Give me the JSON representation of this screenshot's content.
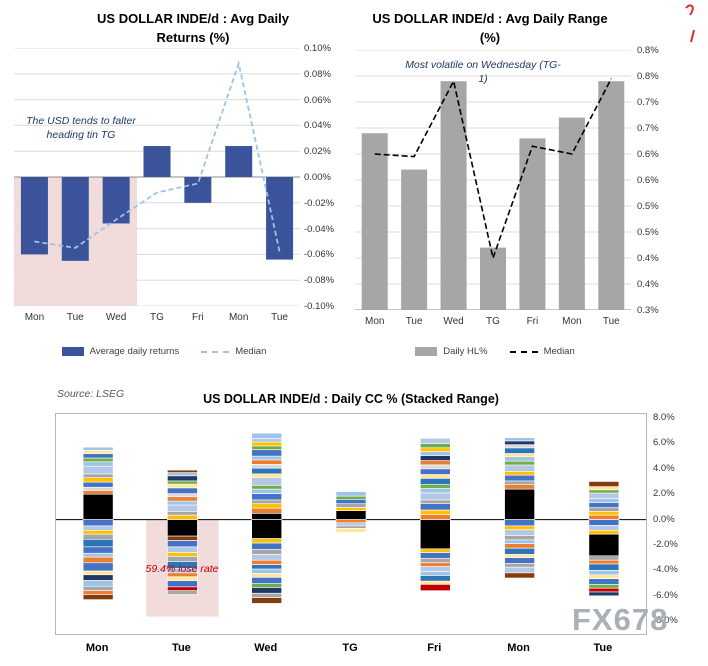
{
  "source": "Source: LSEG",
  "watermark": "FX678",
  "colors": {
    "bar_blue": "#3a539b",
    "median_light_blue": "#9dc3e6",
    "bar_gray": "#a6a6a6",
    "median_black": "#000000",
    "highlight_pink": "#f2dcdb",
    "annotation_blue": "#1f3864",
    "annotation_red": "#c00000"
  },
  "chart_data": [
    {
      "type": "bar",
      "title": "US DOLLAR INDE/d : Avg Daily Returns (%)",
      "categories": [
        "Mon",
        "Tue",
        "Wed",
        "TG",
        "Fri",
        "Mon",
        "Tue"
      ],
      "series": [
        {
          "name": "Average daily returns",
          "type": "bar",
          "color": "#3a539b",
          "values": [
            -0.06,
            -0.065,
            -0.036,
            0.024,
            -0.02,
            0.024,
            -0.064
          ]
        },
        {
          "name": "Median",
          "type": "line",
          "style": "dashed",
          "color": "#9dc3e6",
          "values": [
            -0.05,
            -0.055,
            -0.033,
            -0.012,
            -0.005,
            0.088,
            -0.058
          ]
        }
      ],
      "ylim": [
        -0.1,
        0.1
      ],
      "yticks": [
        "0.10%",
        "0.08%",
        "0.06%",
        "0.04%",
        "0.02%",
        "0.00%",
        "-0.02%",
        "-0.04%",
        "-0.06%",
        "-0.08%",
        "-0.10%"
      ],
      "annotation": "The USD tends to falter heading tin TG",
      "highlight_region": "Mon-Wed below zero",
      "legend_position": "bottom",
      "grid": true
    },
    {
      "type": "bar",
      "title": "US DOLLAR INDE/d : Avg Daily Range (%)",
      "categories": [
        "Mon",
        "Tue",
        "Wed",
        "TG",
        "Fri",
        "Mon",
        "Tue"
      ],
      "series": [
        {
          "name": "Daily HL%",
          "type": "bar",
          "color": "#a6a6a6",
          "values": [
            0.64,
            0.57,
            0.74,
            0.42,
            0.63,
            0.67,
            0.74
          ]
        },
        {
          "name": "Median",
          "type": "line",
          "style": "dashed",
          "color": "#000000",
          "values": [
            0.6,
            0.595,
            0.74,
            0.4,
            0.615,
            0.6,
            0.745
          ]
        }
      ],
      "ylim": [
        0.3,
        0.8
      ],
      "yticks": [
        "0.8%",
        "0.8%",
        "0.7%",
        "0.7%",
        "0.6%",
        "0.6%",
        "0.5%",
        "0.5%",
        "0.4%",
        "0.4%",
        "0.3%"
      ],
      "annotation": "Most volatile on Wednesday (TG-1)",
      "legend_position": "bottom",
      "grid": true
    },
    {
      "type": "stacked-bar",
      "title": "US DOLLAR INDE/d : Daily CC % (Stacked Range)",
      "categories": [
        "Mon",
        "Tue",
        "Wed",
        "TG",
        "Fri",
        "Mon",
        "Tue"
      ],
      "ylim": [
        -8,
        8
      ],
      "yticks": [
        "8.0%",
        "6.0%",
        "4.0%",
        "2.0%",
        "0.0%",
        "-2.0%",
        "-4.0%",
        "-6.0%",
        "-8.0%"
      ],
      "annotation": "59.4% lose rate",
      "annotation_target": "Tue",
      "columns": [
        {
          "label": "Mon",
          "pos": [
            [
              2.0,
              "#000000"
            ],
            [
              0.3,
              "#ed7d31"
            ],
            [
              0.25,
              "#d9d9d9"
            ],
            [
              0.4,
              "#4472c4"
            ],
            [
              0.35,
              "#ffc000"
            ],
            [
              0.3,
              "#a6a6a6"
            ],
            [
              0.6,
              "#b4c7e7"
            ],
            [
              0.35,
              "#9dc3e6"
            ],
            [
              0.3,
              "#70ad47"
            ],
            [
              0.35,
              "#4472c4"
            ],
            [
              0.25,
              "#ffe699"
            ],
            [
              0.25,
              "#9dc3e6"
            ]
          ],
          "neg": [
            [
              0.5,
              "#4472c4"
            ],
            [
              0.35,
              "#b4c7e7"
            ],
            [
              0.3,
              "#ffc000"
            ],
            [
              0.4,
              "#a6a6a6"
            ],
            [
              0.6,
              "#2e75b6"
            ],
            [
              0.5,
              "#4472c4"
            ],
            [
              0.3,
              "#9dc3e6"
            ],
            [
              0.45,
              "#ed7d31"
            ],
            [
              0.65,
              "#4472c4"
            ],
            [
              0.3,
              "#ffe699"
            ],
            [
              0.45,
              "#203864"
            ],
            [
              0.45,
              "#9dc3e6"
            ],
            [
              0.35,
              "#a6a6a6"
            ],
            [
              0.3,
              "#ed7d31"
            ],
            [
              0.4,
              "#843c0c"
            ]
          ]
        },
        {
          "label": "Tue",
          "pos": [
            [
              0.35,
              "#ffc000"
            ],
            [
              0.3,
              "#a6a6a6"
            ],
            [
              0.5,
              "#b4c7e7"
            ],
            [
              0.3,
              "#9dc3e6"
            ],
            [
              0.35,
              "#ed7d31"
            ],
            [
              0.25,
              "#d9d9d9"
            ],
            [
              0.45,
              "#4472c4"
            ],
            [
              0.3,
              "#ffe699"
            ],
            [
              0.25,
              "#70ad47"
            ],
            [
              0.4,
              "#203864"
            ],
            [
              0.25,
              "#9dc3e6"
            ],
            [
              0.2,
              "#843c0c"
            ]
          ],
          "neg": [
            [
              1.3,
              "#000000"
            ],
            [
              0.35,
              "#843c0c"
            ],
            [
              0.5,
              "#4472c4"
            ],
            [
              0.45,
              "#b4c7e7"
            ],
            [
              0.3,
              "#ffc000"
            ],
            [
              0.4,
              "#a6a6a6"
            ],
            [
              0.55,
              "#2e75b6"
            ],
            [
              0.35,
              "#9dc3e6"
            ],
            [
              0.3,
              "#ed7d31"
            ],
            [
              0.3,
              "#ffe699"
            ],
            [
              0.5,
              "#4472c4"
            ],
            [
              0.3,
              "#c00000"
            ],
            [
              0.3,
              "#a6a6a6"
            ]
          ]
        },
        {
          "label": "Wed",
          "pos": [
            [
              0.5,
              "#000000"
            ],
            [
              0.4,
              "#ed7d31"
            ],
            [
              0.35,
              "#ffc000"
            ],
            [
              0.3,
              "#a6a6a6"
            ],
            [
              0.5,
              "#4472c4"
            ],
            [
              0.35,
              "#9dc3e6"
            ],
            [
              0.3,
              "#70ad47"
            ],
            [
              0.6,
              "#b4c7e7"
            ],
            [
              0.3,
              "#ffe699"
            ],
            [
              0.45,
              "#2e75b6"
            ],
            [
              0.3,
              "#d9d9d9"
            ],
            [
              0.35,
              "#ed7d31"
            ],
            [
              0.3,
              "#9dc3e6"
            ],
            [
              0.5,
              "#4472c4"
            ],
            [
              0.3,
              "#70ad47"
            ],
            [
              0.3,
              "#ffc000"
            ],
            [
              0.3,
              "#b4c7e7"
            ],
            [
              0.4,
              "#9dc3e6"
            ]
          ],
          "neg": [
            [
              1.5,
              "#000000"
            ],
            [
              0.35,
              "#ffc000"
            ],
            [
              0.5,
              "#4472c4"
            ],
            [
              0.4,
              "#a6a6a6"
            ],
            [
              0.45,
              "#b4c7e7"
            ],
            [
              0.35,
              "#ed7d31"
            ],
            [
              0.35,
              "#2e75b6"
            ],
            [
              0.35,
              "#9dc3e6"
            ],
            [
              0.3,
              "#ffe699"
            ],
            [
              0.5,
              "#4472c4"
            ],
            [
              0.3,
              "#70ad47"
            ],
            [
              0.45,
              "#203864"
            ],
            [
              0.35,
              "#a6a6a6"
            ],
            [
              0.45,
              "#843c0c"
            ]
          ]
        },
        {
          "label": "TG",
          "pos": [
            [
              0.7,
              "#000000"
            ],
            [
              0.25,
              "#ffc000"
            ],
            [
              0.3,
              "#a6a6a6"
            ],
            [
              0.35,
              "#4472c4"
            ],
            [
              0.25,
              "#70ad47"
            ],
            [
              0.35,
              "#9dc3e6"
            ]
          ],
          "neg": [
            [
              0.25,
              "#ed7d31"
            ],
            [
              0.25,
              "#b4c7e7"
            ],
            [
              0.2,
              "#a6a6a6"
            ],
            [
              0.3,
              "#ffe699"
            ]
          ]
        },
        {
          "label": "Fri",
          "pos": [
            [
              0.4,
              "#ed7d31"
            ],
            [
              0.35,
              "#ffc000"
            ],
            [
              0.5,
              "#4472c4"
            ],
            [
              0.3,
              "#a6a6a6"
            ],
            [
              0.55,
              "#b4c7e7"
            ],
            [
              0.35,
              "#9dc3e6"
            ],
            [
              0.3,
              "#70ad47"
            ],
            [
              0.5,
              "#2e75b6"
            ],
            [
              0.3,
              "#ffe699"
            ],
            [
              0.45,
              "#4472c4"
            ],
            [
              0.3,
              "#d9d9d9"
            ],
            [
              0.35,
              "#ed7d31"
            ],
            [
              0.4,
              "#203864"
            ],
            [
              0.3,
              "#9dc3e6"
            ],
            [
              0.3,
              "#ffc000"
            ],
            [
              0.35,
              "#70ad47"
            ],
            [
              0.4,
              "#b4c7e7"
            ]
          ],
          "neg": [
            [
              2.3,
              "#000000"
            ],
            [
              0.3,
              "#ffc000"
            ],
            [
              0.45,
              "#4472c4"
            ],
            [
              0.35,
              "#a6a6a6"
            ],
            [
              0.3,
              "#ed7d31"
            ],
            [
              0.4,
              "#b4c7e7"
            ],
            [
              0.3,
              "#9dc3e6"
            ],
            [
              0.45,
              "#2e75b6"
            ],
            [
              0.25,
              "#ffe699"
            ],
            [
              0.5,
              "#c00000"
            ]
          ]
        },
        {
          "label": "Mon",
          "pos": [
            [
              2.4,
              "#000000"
            ],
            [
              0.35,
              "#ed7d31"
            ],
            [
              0.3,
              "#a6a6a6"
            ],
            [
              0.45,
              "#4472c4"
            ],
            [
              0.3,
              "#ffc000"
            ],
            [
              0.5,
              "#b4c7e7"
            ],
            [
              0.3,
              "#70ad47"
            ],
            [
              0.35,
              "#9dc3e6"
            ],
            [
              0.25,
              "#ffe699"
            ],
            [
              0.45,
              "#2e75b6"
            ],
            [
              0.25,
              "#d9d9d9"
            ],
            [
              0.3,
              "#203864"
            ],
            [
              0.25,
              "#9dc3e6"
            ]
          ],
          "neg": [
            [
              0.5,
              "#4472c4"
            ],
            [
              0.3,
              "#ffc000"
            ],
            [
              0.45,
              "#b4c7e7"
            ],
            [
              0.35,
              "#a6a6a6"
            ],
            [
              0.3,
              "#9dc3e6"
            ],
            [
              0.35,
              "#ed7d31"
            ],
            [
              0.5,
              "#2e75b6"
            ],
            [
              0.25,
              "#ffe699"
            ],
            [
              0.45,
              "#4472c4"
            ],
            [
              0.3,
              "#a6a6a6"
            ],
            [
              0.45,
              "#b4c7e7"
            ],
            [
              0.4,
              "#843c0c"
            ]
          ]
        },
        {
          "label": "Tue",
          "pos": [
            [
              0.35,
              "#ed7d31"
            ],
            [
              0.3,
              "#ffc000"
            ],
            [
              0.3,
              "#a6a6a6"
            ],
            [
              0.4,
              "#4472c4"
            ],
            [
              0.3,
              "#9dc3e6"
            ],
            [
              0.45,
              "#b4c7e7"
            ],
            [
              0.25,
              "#70ad47"
            ],
            [
              0.25,
              "#ffe699"
            ],
            [
              0.4,
              "#843c0c"
            ]
          ],
          "neg": [
            [
              0.45,
              "#4472c4"
            ],
            [
              0.4,
              "#b4c7e7"
            ],
            [
              0.3,
              "#ffc000"
            ],
            [
              1.7,
              "#000000"
            ],
            [
              0.35,
              "#a6a6a6"
            ],
            [
              0.3,
              "#ed7d31"
            ],
            [
              0.5,
              "#2e75b6"
            ],
            [
              0.35,
              "#9dc3e6"
            ],
            [
              0.3,
              "#ffe699"
            ],
            [
              0.45,
              "#4472c4"
            ],
            [
              0.3,
              "#70ad47"
            ],
            [
              0.3,
              "#c00000"
            ],
            [
              0.3,
              "#203864"
            ]
          ]
        }
      ]
    }
  ]
}
